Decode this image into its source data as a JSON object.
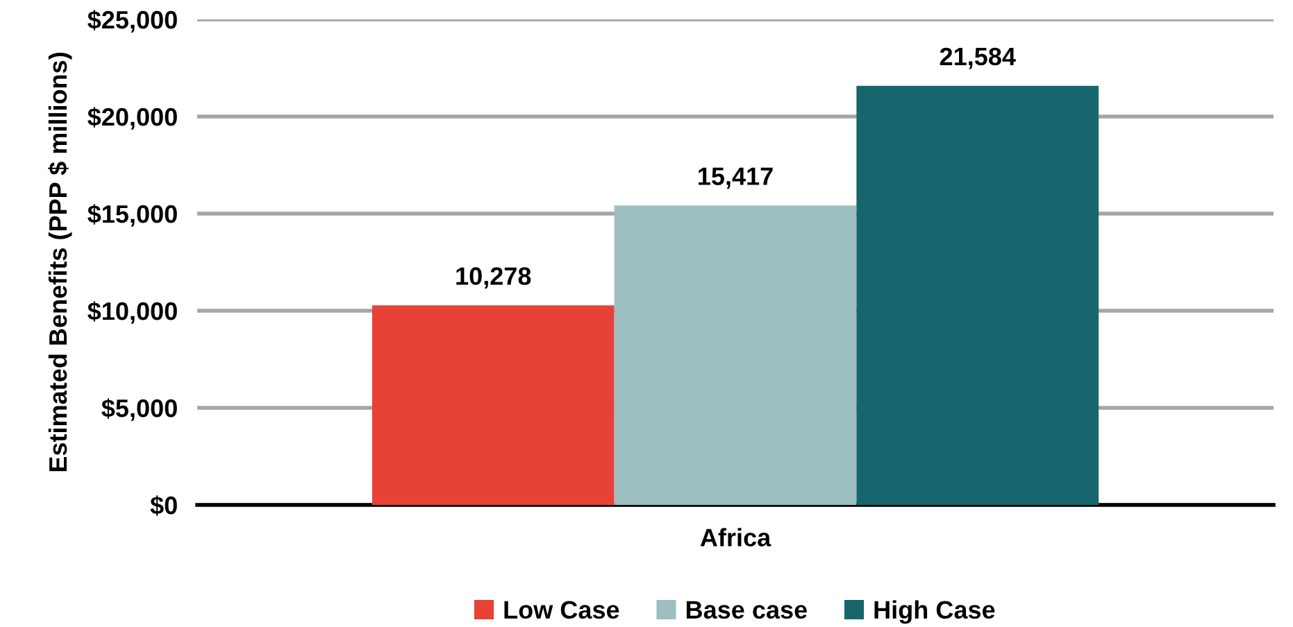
{
  "chart_data": {
    "type": "bar",
    "ylabel": "Estimated Benefits (PPP $ millions)",
    "categories": [
      "Africa"
    ],
    "series": [
      {
        "name": "Low Case",
        "color": "#e84236",
        "values": [
          10278
        ],
        "value_labels": [
          "10,278"
        ]
      },
      {
        "name": "Base case",
        "color": "#9dbfc1",
        "values": [
          15417
        ],
        "value_labels": [
          "15,417"
        ]
      },
      {
        "name": "High Case",
        "color": "#17666e",
        "values": [
          21584
        ],
        "value_labels": [
          "21,584"
        ]
      }
    ],
    "ylim": [
      0,
      25000
    ],
    "yticks": [
      {
        "value": 0,
        "label": "$0"
      },
      {
        "value": 5000,
        "label": "$5,000"
      },
      {
        "value": 10000,
        "label": "$10,000"
      },
      {
        "value": 15000,
        "label": "$15,000"
      },
      {
        "value": 20000,
        "label": "$20,000"
      },
      {
        "value": 25000,
        "label": "$25,000"
      }
    ],
    "grid": "y",
    "legend": "bottom"
  }
}
